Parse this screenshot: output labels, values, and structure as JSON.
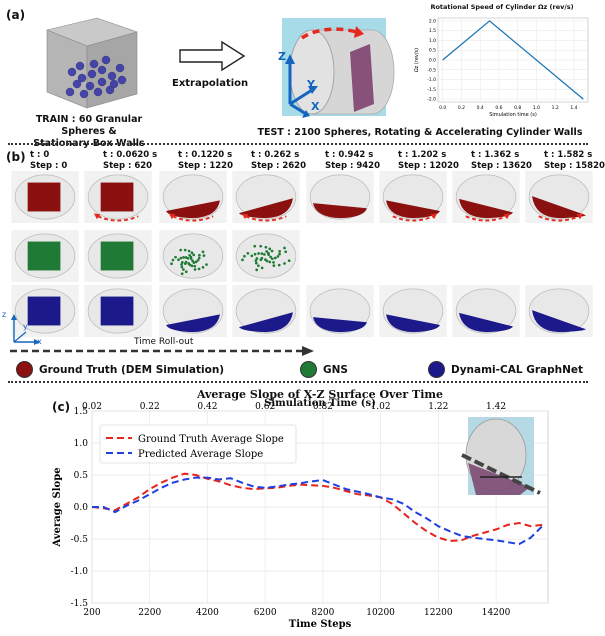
{
  "panel_a": {
    "label": "(a)",
    "train_caption_line1": "TRAIN : 60 Granular Spheres &",
    "train_caption_line2": "Stationary Box Walls",
    "arrow_label": "Extrapolation",
    "test_caption": "TEST : 2100 Spheres, Rotating & Accelerating Cylinder Walls",
    "axis_z": "Z",
    "axis_y": "Y",
    "axis_x": "X",
    "inset_chart": {
      "type": "line",
      "title": "Rotational Speed of Cylinder Ωz (rev/s)",
      "ylabel": "Ωz (rev/s)",
      "xlabel": "Simulation time (s)",
      "x": [
        0.0,
        0.5,
        1.5
      ],
      "y": [
        0.0,
        2.0,
        -2.0
      ],
      "xticks": [
        "0.0",
        "0.2",
        "0.4",
        "0.6",
        "0.8",
        "1.0",
        "1.2",
        "1.4"
      ],
      "yticks": [
        "2.0",
        "1.5",
        "1.0",
        "0.5",
        "0.0",
        "-0.5",
        "-1.0",
        "-1.5",
        "-2.0"
      ]
    }
  },
  "panel_b": {
    "label": "(b)",
    "columns": [
      {
        "t": "t : 0",
        "step": "Step : 0"
      },
      {
        "t": "t : 0.0620 s",
        "step": "Step : 620"
      },
      {
        "t": "t : 0.1220 s",
        "step": "Step : 1220"
      },
      {
        "t": "t : 0.262 s",
        "step": "Step : 2620"
      },
      {
        "t": "t : 0.942 s",
        "step": "Step : 9420"
      },
      {
        "t": "t : 1.202 s",
        "step": "Step : 12020"
      },
      {
        "t": "t : 1.362 s",
        "step": "Step : 13620"
      },
      {
        "t": "t : 1.582 s",
        "step": "Step : 15820"
      }
    ],
    "timeline_label": "Time Roll-out",
    "axis_z": "z",
    "axis_y": "y",
    "axis_x": "x",
    "legend": [
      {
        "label": "Ground Truth (DEM Simulation)",
        "color": "#8b1010"
      },
      {
        "label": "GNS",
        "color": "#1e7a34"
      },
      {
        "label": "Dynami-CAL GraphNet",
        "color": "#1c1a8a"
      }
    ]
  },
  "panel_c": {
    "label": "(c)"
  },
  "chart_data": {
    "type": "line",
    "title": "Average Slope of X-Z Surface Over Time",
    "xlabel": "Time Steps",
    "ylabel": "Average Slope",
    "x2label": "Simulation Time (s)",
    "xlim": [
      200,
      16000
    ],
    "ylim": [
      -1.5,
      1.5
    ],
    "xticks": [
      200,
      2200,
      4200,
      6200,
      8200,
      10200,
      12200,
      14200
    ],
    "yticks": [
      -1.5,
      -1.0,
      -0.5,
      0.0,
      0.5,
      1.0,
      1.5
    ],
    "x2ticks": [
      "0.02",
      "0.22",
      "0.42",
      "0.62",
      "0.82",
      "1.02",
      "1.22",
      "1.42"
    ],
    "grid": true,
    "legend_position": "top-left",
    "series": [
      {
        "name": "Ground Truth Average Slope",
        "color": "#e8231c",
        "x": [
          200,
          600,
          1000,
          1400,
          1800,
          2200,
          2600,
          3000,
          3400,
          3800,
          4200,
          4600,
          5000,
          5400,
          5800,
          6200,
          6600,
          7000,
          7400,
          7800,
          8200,
          8600,
          9000,
          9400,
          9800,
          10200,
          10600,
          11000,
          11400,
          11800,
          12200,
          12600,
          13000,
          13400,
          13800,
          14200,
          14600,
          15000,
          15400,
          15800
        ],
        "y": [
          0.0,
          -0.02,
          -0.05,
          0.05,
          0.15,
          0.28,
          0.38,
          0.46,
          0.52,
          0.5,
          0.44,
          0.4,
          0.34,
          0.3,
          0.28,
          0.29,
          0.3,
          0.33,
          0.35,
          0.34,
          0.33,
          0.3,
          0.25,
          0.2,
          0.18,
          0.15,
          0.05,
          -0.1,
          -0.25,
          -0.38,
          -0.48,
          -0.53,
          -0.52,
          -0.45,
          -0.4,
          -0.35,
          -0.28,
          -0.25,
          -0.3,
          -0.28
        ]
      },
      {
        "name": "Predicted Average Slope",
        "color": "#1f3fe0",
        "x": [
          200,
          600,
          1000,
          1400,
          1800,
          2200,
          2600,
          3000,
          3400,
          3800,
          4200,
          4600,
          5000,
          5400,
          5800,
          6200,
          6600,
          7000,
          7400,
          7800,
          8200,
          8600,
          9000,
          9400,
          9800,
          10200,
          10600,
          11000,
          11400,
          11800,
          12200,
          12600,
          13000,
          13400,
          13800,
          14200,
          14600,
          15000,
          15400,
          15800
        ],
        "y": [
          0.0,
          0.0,
          -0.08,
          0.02,
          0.1,
          0.2,
          0.3,
          0.38,
          0.43,
          0.46,
          0.46,
          0.43,
          0.45,
          0.38,
          0.32,
          0.3,
          0.32,
          0.35,
          0.37,
          0.4,
          0.42,
          0.35,
          0.28,
          0.24,
          0.2,
          0.15,
          0.12,
          0.05,
          -0.08,
          -0.18,
          -0.3,
          -0.38,
          -0.45,
          -0.48,
          -0.5,
          -0.52,
          -0.55,
          -0.58,
          -0.48,
          -0.3
        ]
      }
    ]
  }
}
